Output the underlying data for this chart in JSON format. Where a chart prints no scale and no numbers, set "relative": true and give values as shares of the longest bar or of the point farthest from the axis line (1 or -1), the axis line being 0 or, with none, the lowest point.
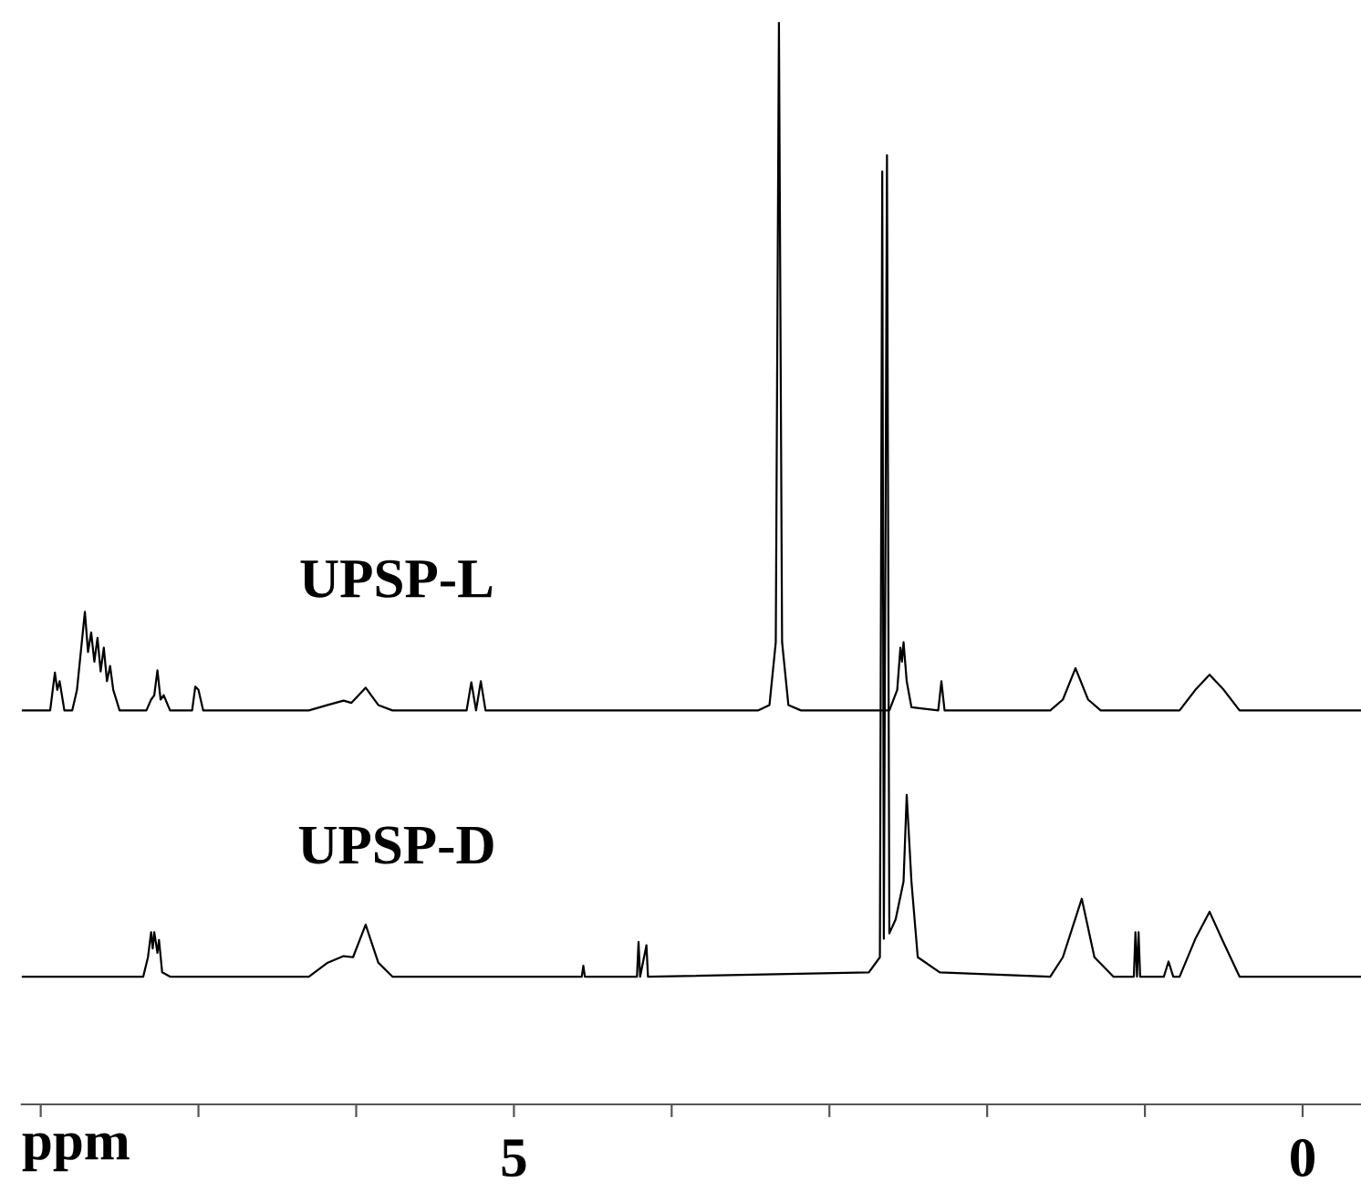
{
  "chart_data": {
    "type": "line",
    "relative": true,
    "xlabel": "ppm",
    "xlim": [
      8.12,
      -0.37
    ],
    "xticks": [
      {
        "value": 8,
        "label": null
      },
      {
        "value": 7,
        "label": null
      },
      {
        "value": 6,
        "label": null
      },
      5,
      {
        "value": 4,
        "label": null
      },
      {
        "value": 3,
        "label": null
      },
      {
        "value": 2,
        "label": null
      },
      {
        "value": 1,
        "label": null
      },
      0
    ],
    "grid": false,
    "legend": false,
    "marker": "none",
    "line_style": "solid",
    "series": [
      {
        "name": "UPSP-L",
        "color": "#000000",
        "x": [
          8.12,
          7.94,
          7.91,
          7.895,
          7.88,
          7.85,
          7.8,
          7.77,
          7.72,
          7.7,
          7.68,
          7.66,
          7.64,
          7.62,
          7.6,
          7.58,
          7.56,
          7.54,
          7.5,
          7.33,
          7.3,
          7.28,
          7.26,
          7.24,
          7.22,
          7.18,
          7.04,
          7.02,
          7.0,
          6.97,
          6.3,
          6.18,
          6.08,
          6.03,
          5.94,
          5.86,
          5.77,
          5.3,
          5.27,
          5.24,
          5.21,
          5.18,
          3.45,
          3.38,
          3.34,
          3.32,
          3.3,
          3.26,
          3.18,
          2.62,
          2.57,
          2.55,
          2.54,
          2.53,
          2.51,
          2.48,
          2.31,
          2.29,
          2.27,
          1.6,
          1.52,
          1.44,
          1.36,
          1.28,
          0.78,
          0.68,
          0.59,
          0.5,
          0.4,
          -0.37
        ],
        "values": [
          0.364,
          0.364,
          0.399,
          0.383,
          0.391,
          0.364,
          0.364,
          0.383,
          0.455,
          0.418,
          0.436,
          0.409,
          0.431,
          0.4,
          0.422,
          0.391,
          0.405,
          0.383,
          0.364,
          0.364,
          0.374,
          0.378,
          0.401,
          0.374,
          0.378,
          0.364,
          0.364,
          0.386,
          0.383,
          0.364,
          0.364,
          0.369,
          0.373,
          0.371,
          0.385,
          0.369,
          0.364,
          0.364,
          0.39,
          0.364,
          0.391,
          0.364,
          0.364,
          0.369,
          0.427,
          1.0,
          0.427,
          0.369,
          0.364,
          0.364,
          0.383,
          0.422,
          0.409,
          0.427,
          0.391,
          0.367,
          0.364,
          0.391,
          0.364,
          0.364,
          0.374,
          0.403,
          0.374,
          0.364,
          0.364,
          0.383,
          0.397,
          0.383,
          0.364,
          0.364
        ]
      },
      {
        "name": "UPSP-D",
        "color": "#000000",
        "x": [
          8.12,
          7.35,
          7.32,
          7.3,
          7.29,
          7.28,
          7.26,
          7.25,
          7.23,
          7.18,
          6.3,
          6.18,
          6.08,
          6.02,
          5.94,
          5.86,
          5.77,
          4.57,
          4.56,
          4.55,
          4.22,
          4.21,
          4.2,
          4.16,
          4.15,
          2.75,
          2.68,
          2.665,
          2.655,
          2.635,
          2.62,
          2.58,
          2.53,
          2.51,
          2.48,
          2.44,
          2.3,
          1.6,
          1.52,
          1.4,
          1.32,
          1.2,
          1.07,
          1.06,
          1.05,
          1.04,
          1.03,
          0.88,
          0.85,
          0.82,
          0.78,
          0.68,
          0.59,
          0.5,
          0.4,
          -0.37
        ],
        "values": [
          0.118,
          0.118,
          0.136,
          0.159,
          0.144,
          0.159,
          0.14,
          0.152,
          0.122,
          0.118,
          0.118,
          0.131,
          0.137,
          0.136,
          0.166,
          0.131,
          0.118,
          0.118,
          0.128,
          0.118,
          0.118,
          0.15,
          0.118,
          0.147,
          0.118,
          0.122,
          0.136,
          0.862,
          0.153,
          0.877,
          0.158,
          0.171,
          0.206,
          0.286,
          0.206,
          0.136,
          0.122,
          0.118,
          0.136,
          0.19,
          0.136,
          0.118,
          0.118,
          0.159,
          0.118,
          0.159,
          0.118,
          0.118,
          0.132,
          0.118,
          0.118,
          0.153,
          0.178,
          0.149,
          0.118,
          0.118
        ]
      }
    ]
  }
}
